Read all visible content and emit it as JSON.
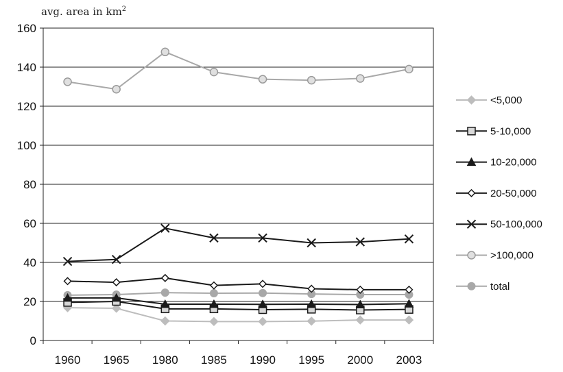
{
  "chart_data": {
    "type": "line",
    "title": "",
    "xlabel": "",
    "ylabel": "avg. area in km",
    "ylabel_superscript": "2",
    "categories": [
      "1960",
      "1965",
      "1980",
      "1985",
      "1990",
      "1995",
      "2000",
      "2003"
    ],
    "ylim": [
      0,
      160
    ],
    "yticks": [
      "0",
      "20",
      "40",
      "60",
      "80",
      "100",
      "120",
      "140",
      "160"
    ],
    "grid": true,
    "legend_position": "right",
    "series": [
      {
        "name": "<5,000",
        "color": "#bdbdbd",
        "marker": "diamond-filled",
        "values": [
          16.8,
          16.5,
          10.0,
          9.7,
          9.7,
          9.9,
          10.5,
          10.5
        ]
      },
      {
        "name": "5-10,000",
        "color": "#1a1a1a",
        "marker": "square-open",
        "values": [
          19.5,
          20.0,
          16.2,
          16.2,
          15.8,
          16.0,
          15.6,
          15.9
        ]
      },
      {
        "name": "10-20,000",
        "color": "#1a1a1a",
        "marker": "triangle-filled",
        "values": [
          21.8,
          21.8,
          18.6,
          18.6,
          18.5,
          18.6,
          18.4,
          18.8
        ]
      },
      {
        "name": "20-50,000",
        "color": "#1a1a1a",
        "marker": "diamond-open",
        "values": [
          30.4,
          29.8,
          32.0,
          28.2,
          29.0,
          26.5,
          26.0,
          26.0
        ]
      },
      {
        "name": "50-100,000",
        "color": "#1a1a1a",
        "marker": "x",
        "values": [
          40.5,
          41.5,
          57.5,
          52.5,
          52.5,
          50.0,
          50.5,
          52.0
        ]
      },
      {
        "name": ">100,000",
        "color": "#a8a8a8",
        "marker": "circle-open",
        "values": [
          132.5,
          128.7,
          147.8,
          137.5,
          133.8,
          133.3,
          134.2,
          139.0
        ]
      },
      {
        "name": "total",
        "color": "#a8a8a8",
        "marker": "circle-filled",
        "values": [
          23.2,
          23.5,
          24.5,
          24.2,
          24.3,
          23.8,
          23.5,
          23.5
        ]
      }
    ]
  }
}
